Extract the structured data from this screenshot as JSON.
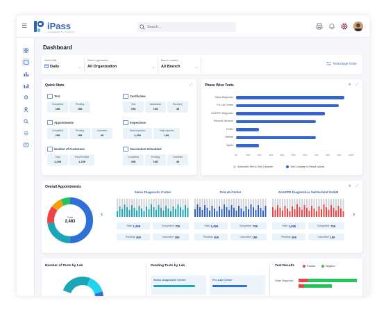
{
  "app": {
    "brand": "iPass",
    "brand_sub": "POWERED BY LEANIFY",
    "search_placeholder": "Search..."
  },
  "page": {
    "title": "Dashboard"
  },
  "filters": [
    {
      "label": "Select Date",
      "value": "Daily"
    },
    {
      "label": "Select Organization",
      "value": "All Organization"
    },
    {
      "label": "Branch Location",
      "value": "All Branch"
    }
  ],
  "rearrange_label": "Rearrange Order",
  "quick_stats": {
    "title": "Quick Stats",
    "test": {
      "title": "Test",
      "items": [
        {
          "label": "Completed",
          "value": "298"
        },
        {
          "label": "Pending",
          "value": "198"
        }
      ]
    },
    "certificates": {
      "title": "Certificates",
      "items": [
        {
          "label": "Test",
          "value": "298"
        },
        {
          "label": "Vaccination",
          "value": "198"
        },
        {
          "label": "Recovery",
          "value": "48"
        }
      ]
    },
    "appointments": {
      "title": "Appointments",
      "items": [
        {
          "label": "Completed",
          "value": "298"
        },
        {
          "label": "Pending",
          "value": "198"
        },
        {
          "label": "Cancelled",
          "value": "48"
        }
      ]
    },
    "inspections": {
      "title": "Inspections",
      "items": [
        {
          "label": "Total Inspection",
          "value": "1,298"
        },
        {
          "label": "Total Inspector",
          "value": "198"
        }
      ]
    },
    "customers": {
      "title": "Number of Customers",
      "items": [
        {
          "label": "Total",
          "value": "1,298"
        },
        {
          "label": "Email Verified",
          "value": "1,198"
        }
      ]
    },
    "vaccination": {
      "title": "Vaccination Scheduled",
      "items": [
        {
          "label": "Completed",
          "value": "298"
        },
        {
          "label": "Pending",
          "value": "198"
        },
        {
          "label": "Cancelled",
          "value": "48"
        }
      ]
    }
  },
  "phase_tests": {
    "title": "Phase Wise Tests",
    "legend": [
      "Scheduled Test to Test Complete",
      "Test Complete to Result Upload"
    ],
    "colors": {
      "bar": "#3465cf",
      "legend_grey": "#d1d5db"
    }
  },
  "chart_data": {
    "type": "bar",
    "orientation": "horizontal",
    "categories": [
      "Swiss Diagnostic",
      "Pro Lab Center",
      "AGAPPE Diagnostic",
      "Records Vaccines",
      "FedEx",
      "Markati",
      "Apollo"
    ],
    "values": [
      95,
      90,
      78,
      70,
      20,
      70,
      20
    ],
    "xlim": [
      0,
      100
    ],
    "xticks": [
      "0%",
      "10%",
      "20%",
      "30%",
      "40%",
      "50%",
      "60%",
      "70%",
      "80%",
      "90%",
      "100%"
    ]
  },
  "overall_appointments": {
    "title": "Overall Appointments",
    "donut_label": "Total",
    "donut_value": "2,483",
    "labs": [
      {
        "name": "Swiss Diagnostic Center",
        "color": "#1aa6b7",
        "total": "1,298",
        "completed": "700",
        "pending": "400",
        "cancelled": "150"
      },
      {
        "name": "ProLab Center",
        "color": "#2f5fc4",
        "total": "1,298",
        "completed": "700",
        "pending": "400",
        "cancelled": "150"
      },
      {
        "name": "AGAPPE Diagnostics Switzerland GmbH",
        "color": "#ef4444",
        "total": "1,298",
        "completed": "700",
        "pending": "400",
        "cancelled": "150"
      }
    ],
    "stat_labels": {
      "total": "Total:",
      "completed": "Completed:",
      "pending": "Pending:",
      "cancelled": "Cancelled:"
    }
  },
  "bottom": {
    "tests_by_lab": "Number of Tests by Lab",
    "pending_by_lab": "Pending Tests by Lab",
    "pending_labs": [
      "Swiss Diagnostic Center",
      "Pro Lab Center"
    ],
    "test_results": "Test Results",
    "positive": "Positive",
    "negative": "Negative",
    "result_lab": "Swiss Diagnostic"
  }
}
